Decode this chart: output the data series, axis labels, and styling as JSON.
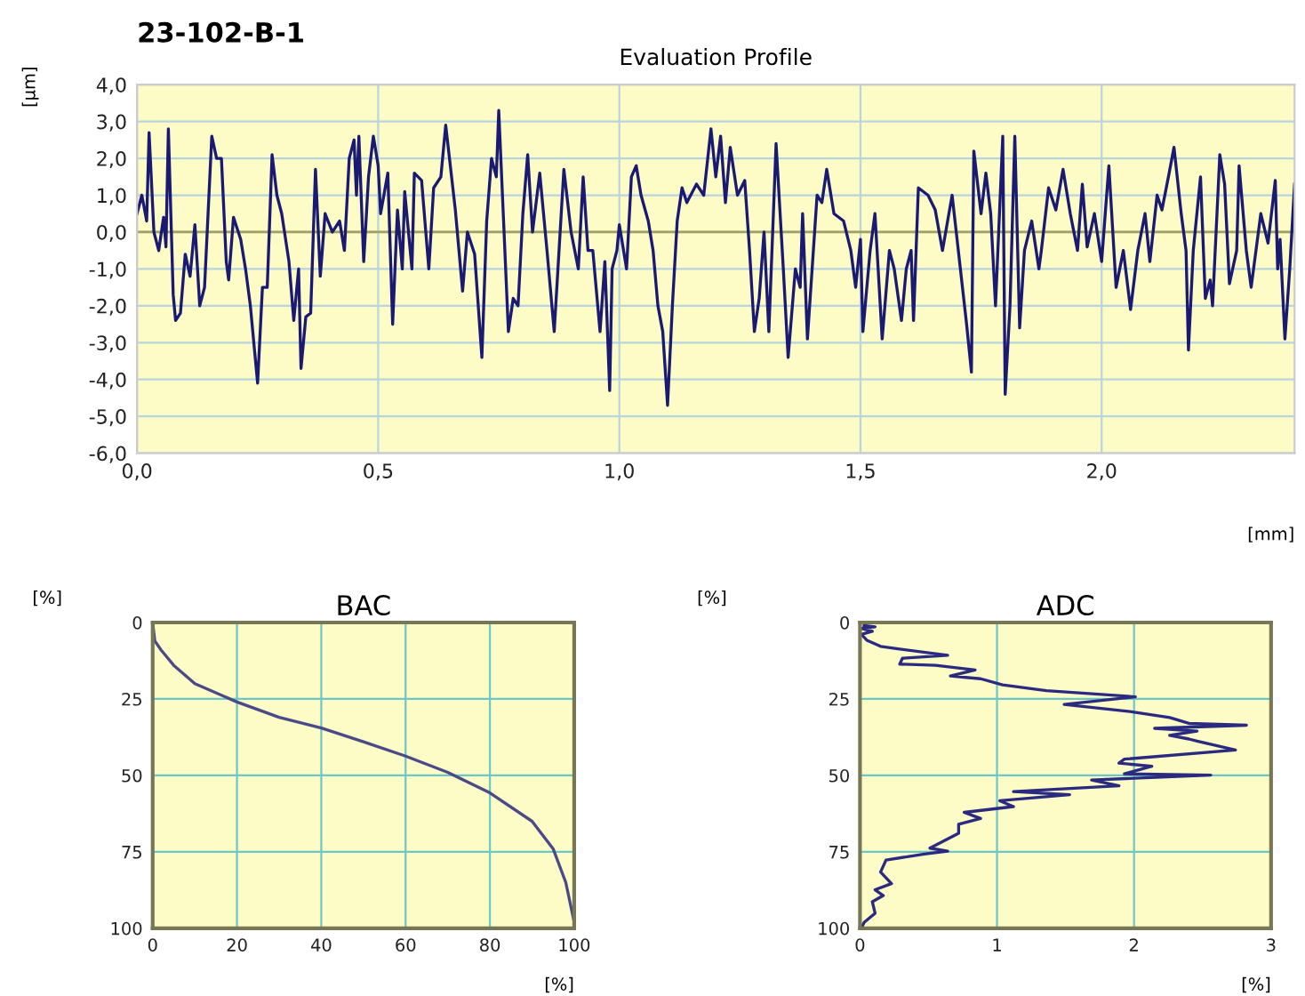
{
  "chart_data": [
    {
      "type": "line",
      "title": "Evaluation Profile",
      "annotations": [
        "23-102-B-1"
      ],
      "xlabel": "[mm]",
      "ylabel": "[µm]",
      "grid": true,
      "xlim": [
        0,
        2.4
      ],
      "ylim": [
        -6,
        4
      ],
      "xticks": [
        {
          "value": 0,
          "label": "0,0"
        },
        {
          "value": 0.5,
          "label": "0,5"
        },
        {
          "value": 1,
          "label": "1,0"
        },
        {
          "value": 1.5,
          "label": "1,5"
        },
        {
          "value": 2,
          "label": "2,0"
        }
      ],
      "yticks": [
        {
          "value": -6,
          "label": "-6,0"
        },
        {
          "value": -5,
          "label": "-5,0"
        },
        {
          "value": -4,
          "label": "-4,0"
        },
        {
          "value": -3,
          "label": "-3,0"
        },
        {
          "value": -2,
          "label": "-2,0"
        },
        {
          "value": -1,
          "label": "-1,0"
        },
        {
          "value": 0,
          "label": "0,0"
        },
        {
          "value": 1,
          "label": "1,0"
        },
        {
          "value": 2,
          "label": "2,0"
        },
        {
          "value": 3,
          "label": "3,0"
        },
        {
          "value": 4,
          "label": "4,0"
        }
      ],
      "ref_lines": [
        {
          "axis": "y",
          "value": 0,
          "color": "#a0a060"
        }
      ],
      "x": [
        0.0,
        0.01,
        0.02,
        0.025,
        0.035,
        0.045,
        0.055,
        0.06,
        0.065,
        0.075,
        0.08,
        0.09,
        0.1,
        0.11,
        0.12,
        0.13,
        0.14,
        0.155,
        0.165,
        0.175,
        0.185,
        0.19,
        0.2,
        0.215,
        0.225,
        0.235,
        0.25,
        0.26,
        0.27,
        0.28,
        0.29,
        0.3,
        0.315,
        0.325,
        0.335,
        0.34,
        0.35,
        0.36,
        0.37,
        0.38,
        0.39,
        0.405,
        0.42,
        0.43,
        0.44,
        0.45,
        0.455,
        0.46,
        0.47,
        0.48,
        0.49,
        0.5,
        0.505,
        0.52,
        0.53,
        0.54,
        0.55,
        0.555,
        0.57,
        0.575,
        0.59,
        0.605,
        0.615,
        0.63,
        0.64,
        0.66,
        0.675,
        0.685,
        0.7,
        0.715,
        0.725,
        0.735,
        0.745,
        0.75,
        0.76,
        0.77,
        0.78,
        0.79,
        0.8,
        0.81,
        0.82,
        0.835,
        0.85,
        0.865,
        0.875,
        0.885,
        0.9,
        0.915,
        0.925,
        0.935,
        0.945,
        0.96,
        0.97,
        0.98,
        0.985,
        0.995,
        1.0,
        1.015,
        1.025,
        1.035,
        1.045,
        1.06,
        1.07,
        1.08,
        1.09,
        1.1,
        1.11,
        1.12,
        1.13,
        1.14,
        1.16,
        1.175,
        1.19,
        1.2,
        1.21,
        1.22,
        1.23,
        1.245,
        1.26,
        1.27,
        1.28,
        1.29,
        1.3,
        1.31,
        1.325,
        1.34,
        1.35,
        1.365,
        1.375,
        1.38,
        1.39,
        1.41,
        1.42,
        1.43,
        1.445,
        1.465,
        1.48,
        1.49,
        1.5,
        1.505,
        1.52,
        1.53,
        1.545,
        1.56,
        1.57,
        1.585,
        1.595,
        1.605,
        1.61,
        1.62,
        1.64,
        1.655,
        1.67,
        1.69,
        1.72,
        1.73,
        1.735,
        1.75,
        1.76,
        1.77,
        1.78,
        1.795,
        1.8,
        1.81,
        1.82,
        1.83,
        1.84,
        1.855,
        1.87,
        1.875,
        1.89,
        1.905,
        1.92,
        1.935,
        1.95,
        1.96,
        1.97,
        1.985,
        2.0,
        2.015,
        2.03,
        2.045,
        2.06,
        2.075,
        2.09,
        2.1,
        2.115,
        2.125,
        2.14,
        2.15,
        2.165,
        2.175,
        2.18,
        2.19,
        2.205,
        2.215,
        2.225,
        2.23,
        2.245,
        2.255,
        2.265,
        2.28,
        2.285,
        2.3,
        2.31,
        2.33,
        2.345,
        2.36,
        2.365,
        2.37,
        2.38,
        2.39,
        2.4
      ],
      "series": [
        {
          "color": "#1a1a72",
          "values": [
            0.5,
            1.0,
            0.3,
            2.7,
            0.0,
            -0.5,
            0.4,
            -0.4,
            2.8,
            -1.7,
            -2.4,
            -2.2,
            -0.6,
            -1.2,
            0.2,
            -2.0,
            -1.5,
            2.6,
            2.0,
            2.0,
            -0.8,
            -1.3,
            0.4,
            -0.2,
            -1.0,
            -2.0,
            -4.1,
            -1.5,
            -1.5,
            2.1,
            1.0,
            0.5,
            -0.8,
            -2.4,
            -1.0,
            -3.7,
            -2.3,
            -2.2,
            1.7,
            -1.2,
            0.5,
            0.0,
            0.3,
            -0.5,
            2.0,
            2.5,
            1.0,
            2.6,
            -0.8,
            1.5,
            2.6,
            1.8,
            0.5,
            1.6,
            -2.5,
            0.6,
            -1.0,
            1.1,
            -1.0,
            1.6,
            1.4,
            -1.0,
            1.2,
            1.5,
            2.9,
            0.6,
            -1.6,
            0.0,
            -0.6,
            -3.4,
            0.3,
            2.0,
            1.5,
            3.3,
            0.3,
            -2.7,
            -1.8,
            -2.0,
            0.5,
            2.1,
            0.0,
            1.6,
            -0.5,
            -2.7,
            -0.5,
            1.7,
            0.0,
            -1.0,
            1.5,
            -0.5,
            -0.5,
            -2.7,
            -0.8,
            -4.3,
            -1.0,
            -0.5,
            0.2,
            -1.0,
            1.5,
            1.8,
            1.0,
            0.3,
            -0.5,
            -2.0,
            -2.7,
            -4.7,
            -2.0,
            0.3,
            1.2,
            0.8,
            1.3,
            1.0,
            2.8,
            1.5,
            2.6,
            0.8,
            2.3,
            1.0,
            1.4,
            -0.5,
            -2.7,
            -1.8,
            0.0,
            -2.7,
            2.4,
            -1.0,
            -3.4,
            -1.0,
            -1.5,
            0.5,
            -2.9,
            1.0,
            0.8,
            1.7,
            0.5,
            0.3,
            -0.5,
            -1.5,
            -0.2,
            -2.7,
            -0.5,
            0.5,
            -2.9,
            -0.5,
            -1.0,
            -2.4,
            -1.0,
            -0.5,
            -2.4,
            1.2,
            1.0,
            0.6,
            -0.5,
            1.0,
            -2.5,
            -3.8,
            2.2,
            0.5,
            1.6,
            0.5,
            -2.0,
            2.6,
            -4.4,
            -2.0,
            2.6,
            -2.6,
            -0.5,
            0.3,
            -1.0,
            -0.5,
            1.2,
            0.6,
            1.7,
            0.5,
            -0.5,
            1.3,
            -0.4,
            0.5,
            -0.8,
            1.8,
            -1.5,
            -0.5,
            -2.1,
            -0.5,
            0.5,
            -0.8,
            1.0,
            0.6,
            1.6,
            2.3,
            0.5,
            -0.5,
            -3.2,
            -0.5,
            1.5,
            -1.8,
            -1.3,
            -2.0,
            2.1,
            1.3,
            -1.4,
            -0.5,
            1.8,
            -0.5,
            -1.5,
            0.5,
            -0.3,
            1.4,
            -1.0,
            -0.2,
            -2.9,
            -1.0,
            1.3
          ]
        }
      ]
    },
    {
      "type": "line",
      "title": "BAC",
      "xlabel": "[%]",
      "ylabel": "[%]",
      "grid": true,
      "xlim": [
        0,
        100
      ],
      "ylim": [
        100,
        0
      ],
      "xticks": [
        0,
        20,
        40,
        60,
        80,
        100
      ],
      "yticks": [
        0,
        25,
        50,
        75,
        100
      ],
      "x": [
        0,
        0.5,
        2,
        5,
        10,
        20,
        30,
        40,
        50,
        60,
        70,
        80,
        90,
        95,
        98,
        100
      ],
      "series": [
        {
          "color": "#4a4a88",
          "values": [
            0,
            6,
            9,
            14,
            20,
            26,
            31,
            34.5,
            39,
            43.7,
            49,
            55.7,
            65,
            74,
            85,
            98
          ]
        }
      ]
    },
    {
      "type": "line",
      "title": "ADC",
      "xlabel": "[%]",
      "ylabel": "[%]",
      "grid": true,
      "xlim": [
        0,
        3
      ],
      "ylim": [
        100,
        0
      ],
      "xticks": [
        0,
        1,
        2,
        3
      ],
      "yticks": [
        0,
        25,
        50,
        75,
        100
      ],
      "x": [
        0.03,
        0.11,
        0.01,
        0.09,
        0.01,
        0.05,
        0.15,
        0.29,
        0.64,
        0.31,
        0.29,
        0.55,
        0.84,
        0.66,
        0.88,
        1.04,
        1.36,
        2.01,
        1.49,
        1.97,
        2.26,
        2.4,
        2.82,
        2.15,
        2.46,
        2.26,
        2.4,
        2.46,
        2.74,
        1.93,
        1.89,
        2.13,
        1.93,
        2.56,
        1.69,
        1.89,
        1.12,
        1.53,
        1.02,
        1.12,
        0.76,
        0.88,
        0.72,
        0.72,
        0.51,
        0.64,
        0.47,
        0.19,
        0.15,
        0.23,
        0.11,
        0.17,
        0.09,
        0.11,
        0.03,
        0.01
      ],
      "series": [
        {
          "color": "#2a2a80",
          "values": [
            1.0,
            1.4,
            1.9,
            2.9,
            3.9,
            5.8,
            7.8,
            8.7,
            10.7,
            11.7,
            13.6,
            14.0,
            15.5,
            17.5,
            18.4,
            20.4,
            22.3,
            24.3,
            26.8,
            29.1,
            31.1,
            33.0,
            33.6,
            34.6,
            35.5,
            36.9,
            38.1,
            38.8,
            41.7,
            44.7,
            46.0,
            47.0,
            49.5,
            49.9,
            51.5,
            53.4,
            55.3,
            56.3,
            58.3,
            60.2,
            62.1,
            64.1,
            66.0,
            68.9,
            73.8,
            74.8,
            75.7,
            77.7,
            81.6,
            85.4,
            87.4,
            89.3,
            91.3,
            95.1,
            98.1,
            100
          ]
        }
      ]
    }
  ]
}
